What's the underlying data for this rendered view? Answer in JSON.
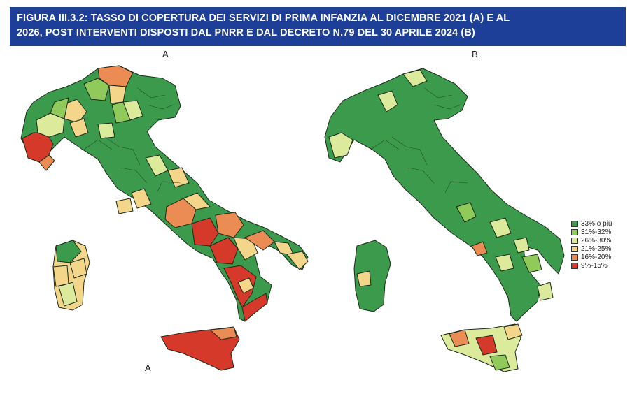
{
  "figure": {
    "title_line1": "FIGURA III.3.2: TASSO DI COPERTURA DEI SERVIZI DI PRIMA INFANZIA AL DICEMBRE 2021 (A) E AL",
    "title_line2": "2026, POST INTERVENTI DISPOSTI DAL PNRR E DAL DECRETO N.79 DEL 30 APRILE 2024 (B)",
    "banner_color": "#1d3f98"
  },
  "panels": {
    "a_top": "A",
    "a_bottom": "A",
    "b_top": "B"
  },
  "legend": {
    "items": [
      {
        "label": "33% o più",
        "color": "#3c9a4c"
      },
      {
        "label": "31%-32%",
        "color": "#8fca5a"
      },
      {
        "label": "26%-30%",
        "color": "#dcea9c"
      },
      {
        "label": "21%-25%",
        "color": "#f3d68a"
      },
      {
        "label": "16%-20%",
        "color": "#ec8c55"
      },
      {
        "label": "9%-15%",
        "color": "#d5392a"
      }
    ]
  }
}
